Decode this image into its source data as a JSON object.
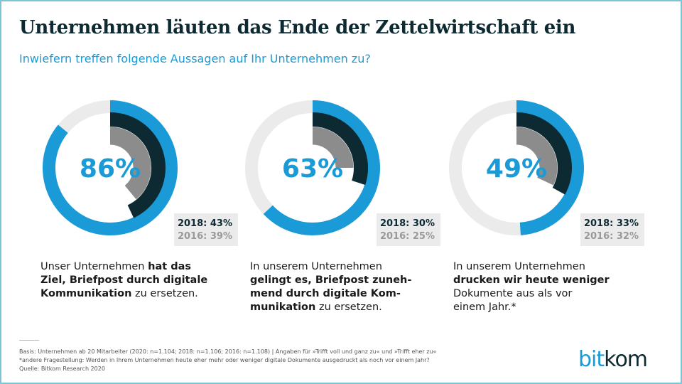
{
  "title": "Unternehmen läuten das Ende der Zettelwirtschaft ein",
  "subtitle": "Inwiefern treffen folgende Aussagen auf Ihr Unternehmen zu?",
  "colors": {
    "y2020": "#1a9bd7",
    "y2018": "#0d2a33",
    "y2016": "#8c8c8c",
    "track": "#ebebeb"
  },
  "chart_data": {
    "type": "donut",
    "series_years": [
      "2020",
      "2018",
      "2016"
    ],
    "items": [
      {
        "main": "86%",
        "v2020": 86,
        "v2018": 43,
        "v2016": 39,
        "label2018": "2018: 43%",
        "label2016": "2016: 39%",
        "lines": [
          [
            {
              "t": "Unser Unternehmen ",
              "b": false
            },
            {
              "t": "hat das",
              "b": true
            }
          ],
          [
            {
              "t": "Ziel, Briefpost durch digitale",
              "b": true
            }
          ],
          [
            {
              "t": "Kommunikation",
              "b": true
            },
            {
              "t": " zu ersetzen.",
              "b": false
            }
          ]
        ]
      },
      {
        "main": "63%",
        "v2020": 63,
        "v2018": 30,
        "v2016": 25,
        "label2018": "2018: 30%",
        "label2016": "2016: 25%",
        "lines": [
          [
            {
              "t": "In unserem Unternehmen",
              "b": false
            }
          ],
          [
            {
              "t": "gelingt es, Briefpost zuneh-",
              "b": true
            }
          ],
          [
            {
              "t": "mend durch digitale Kom-",
              "b": true
            }
          ],
          [
            {
              "t": "munikation",
              "b": true
            },
            {
              "t": " zu ersetzen.",
              "b": false
            }
          ]
        ]
      },
      {
        "main": "49%",
        "v2020": 49,
        "v2018": 33,
        "v2016": 32,
        "label2018": "2018: 33%",
        "label2016": "2016: 32%",
        "lines": [
          [
            {
              "t": "In unserem Unternehmen",
              "b": false
            }
          ],
          [
            {
              "t": "drucken wir heute weniger",
              "b": true
            }
          ],
          [
            {
              "t": "Dokumente aus als vor",
              "b": false
            }
          ],
          [
            {
              "t": "einem Jahr.*",
              "b": false
            }
          ]
        ]
      }
    ]
  },
  "footer": {
    "line1": "Basis: Unternehmen ab 20 Mitarbeiter (2020: n=1.104; 2018: n=1.106; 2016: n=1.108) | Angaben für »Trifft voll und ganz zu« und »Trifft eher zu«",
    "line2": "*andere Fragestellung: Werden in Ihrem Unternehmen heute eher mehr oder weniger digitale Dokumente ausgedruckt als noch vor einem Jahr?",
    "line3": "Quelle: Bitkom Research 2020"
  },
  "logo": {
    "part1": "bit",
    "part2": "kom"
  }
}
